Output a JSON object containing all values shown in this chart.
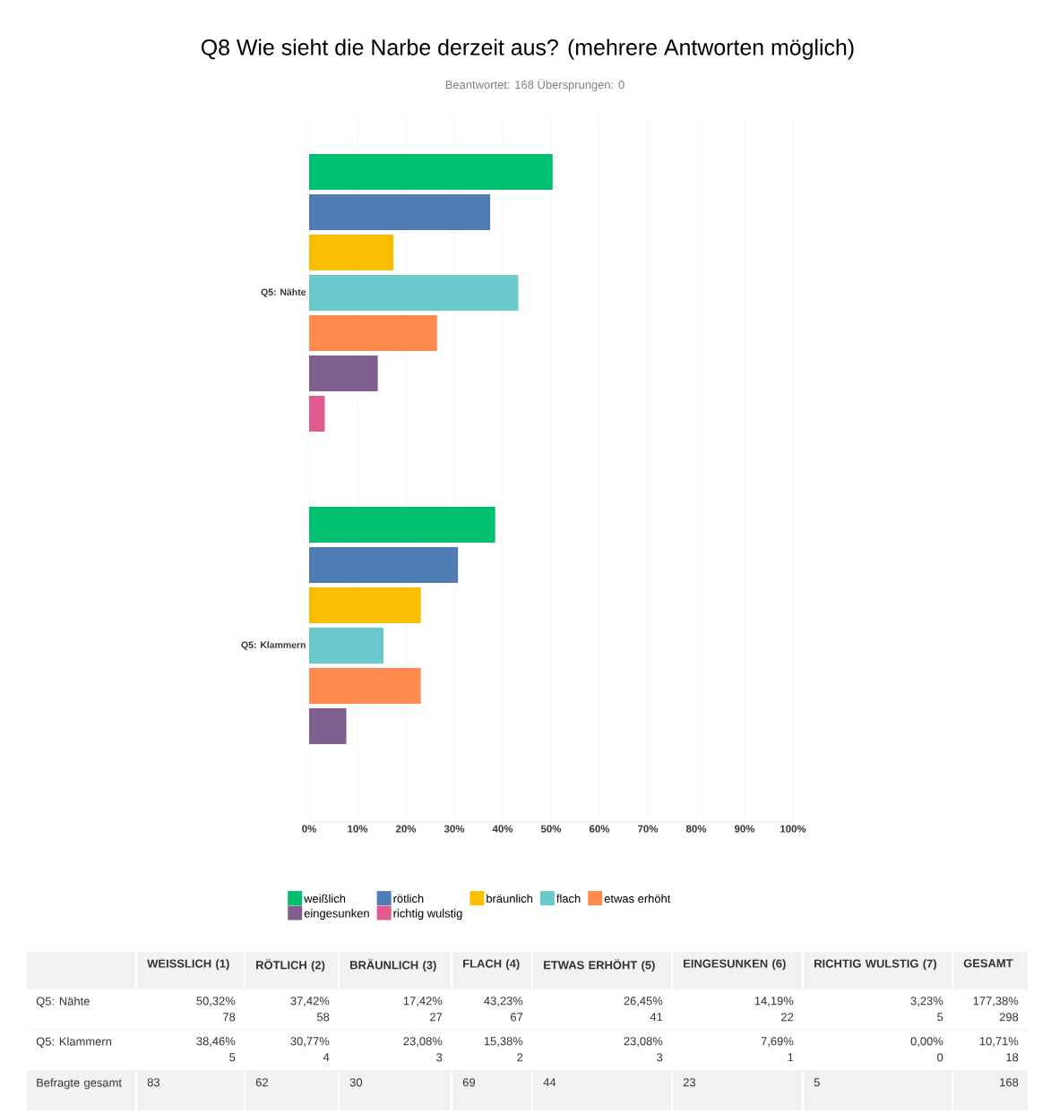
{
  "chart_data": {
    "type": "bar",
    "orientation": "horizontal",
    "title": "Q8 Wie sieht die Narbe derzeit aus? (mehrere Antworten möglich)",
    "subtitle": "Beantwortet: 168 Übersprungen: 0",
    "categories": [
      "Q5: Nähte",
      "Q5: Klammern"
    ],
    "series": [
      {
        "name": "weißlich",
        "color": "#00bf6f",
        "values": [
          50.32,
          38.46
        ]
      },
      {
        "name": "rötlich",
        "color": "#507cb6",
        "values": [
          37.42,
          30.77
        ]
      },
      {
        "name": "bräunlich",
        "color": "#f9be00",
        "values": [
          17.42,
          23.08
        ]
      },
      {
        "name": "flach",
        "color": "#6bc8cd",
        "values": [
          43.23,
          15.38
        ]
      },
      {
        "name": "etwas erhöht",
        "color": "#ff8b4f",
        "values": [
          26.45,
          23.08
        ]
      },
      {
        "name": "eingesunken",
        "color": "#7f5f90",
        "values": [
          14.19,
          7.69
        ]
      },
      {
        "name": "richtig wulstig",
        "color": "#e05c8f",
        "values": [
          3.23,
          0
        ]
      }
    ],
    "xlim": [
      0,
      100
    ],
    "xticks": [
      {
        "value": 0,
        "label": "0%"
      },
      {
        "value": 10,
        "label": "10%"
      },
      {
        "value": 20,
        "label": "20%"
      },
      {
        "value": 30,
        "label": "30%"
      },
      {
        "value": 40,
        "label": "40%"
      },
      {
        "value": 50,
        "label": "50%"
      },
      {
        "value": 60,
        "label": "60%"
      },
      {
        "value": 70,
        "label": "70%"
      },
      {
        "value": 80,
        "label": "80%"
      },
      {
        "value": 90,
        "label": "90%"
      },
      {
        "value": 100,
        "label": "100%"
      }
    ],
    "grid": "x",
    "legend": "bottom",
    "annotations": [
      "WEISSLICH (1)",
      "RÖTLICH (2)",
      "BRÄUNLICH (3)",
      "FLACH (4)",
      "ETWAS ERHÖHT (5)",
      "EINGESUNKEN (6)",
      "RICHTIG WULSTIG (7)",
      "GESAMT",
      "78",
      "58",
      "27",
      "67",
      "41",
      "22",
      "5",
      "5",
      "4",
      "3",
      "2",
      "3",
      "1",
      "0",
      "177,38%",
      "298",
      "10,71%",
      "18",
      "Befragte gesamt",
      "83",
      "62",
      "30",
      "69",
      "44",
      "23",
      "5",
      "168",
      "50,32%",
      "37,42%",
      "17,42%",
      "43,23%",
      "26,45%",
      "14,19%",
      "3,23%",
      "38,46%",
      "30,77%",
      "23,08%",
      "15,38%",
      "23,08%",
      "7,69%",
      "0,00%"
    ]
  }
}
